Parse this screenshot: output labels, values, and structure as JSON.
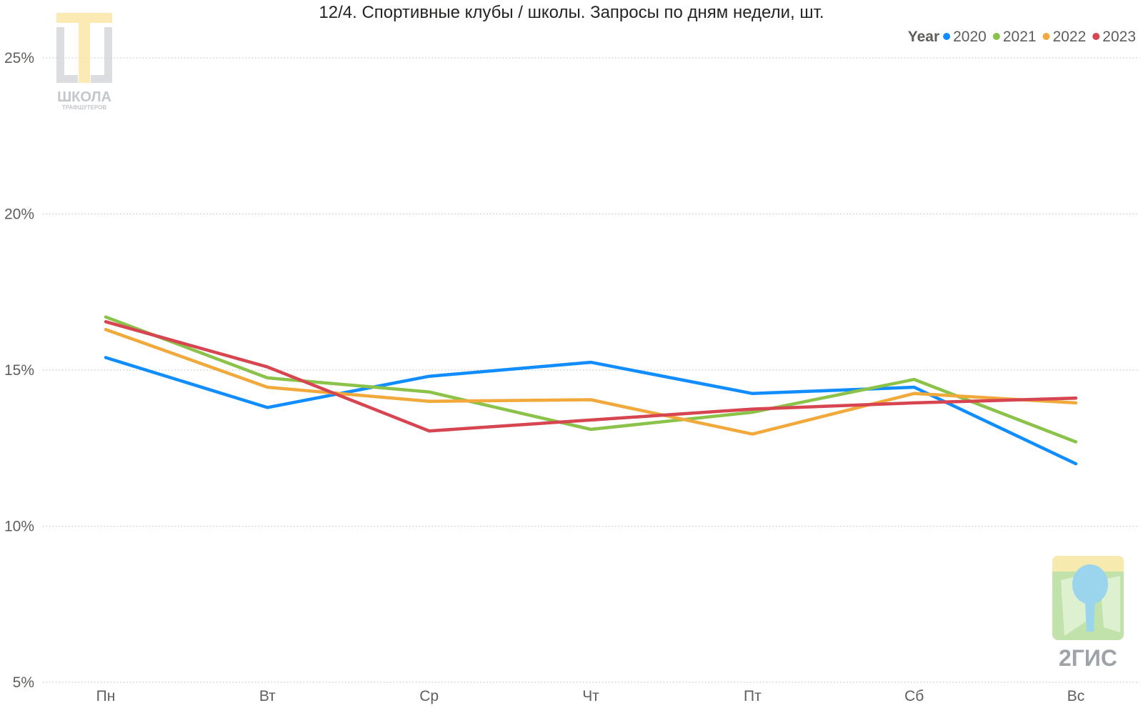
{
  "chart_data": {
    "type": "line",
    "title": "12/4. Спортивные клубы / школы. Запросы по дням недели, шт.",
    "categories": [
      "Пн",
      "Вт",
      "Ср",
      "Чт",
      "Пт",
      "Сб",
      "Вс"
    ],
    "y_ticks": [
      "5%",
      "10%",
      "15%",
      "20%",
      "25%"
    ],
    "ylim": [
      5,
      25
    ],
    "grid": "horizontal-dotted",
    "legend": {
      "title": "Year",
      "placement": "top-right"
    },
    "series": [
      {
        "name": "2020",
        "color": "#118DFF",
        "values": [
          15.4,
          13.8,
          14.8,
          15.25,
          14.25,
          14.45,
          12.0
        ]
      },
      {
        "name": "2021",
        "color": "#8BC34A",
        "values": [
          16.7,
          14.75,
          14.3,
          13.1,
          13.65,
          14.7,
          12.7
        ]
      },
      {
        "name": "2022",
        "color": "#F2A93B",
        "values": [
          16.3,
          14.45,
          14.0,
          14.05,
          12.95,
          14.25,
          13.95
        ]
      },
      {
        "name": "2023",
        "color": "#D64550",
        "values": [
          16.55,
          15.1,
          13.05,
          13.4,
          13.75,
          13.95,
          14.1
        ]
      }
    ]
  },
  "logos": {
    "school_title": "ШКОЛА",
    "school_subtitle": "ТРАФШУТЕРОВ",
    "gis_name": "2ГИС"
  }
}
